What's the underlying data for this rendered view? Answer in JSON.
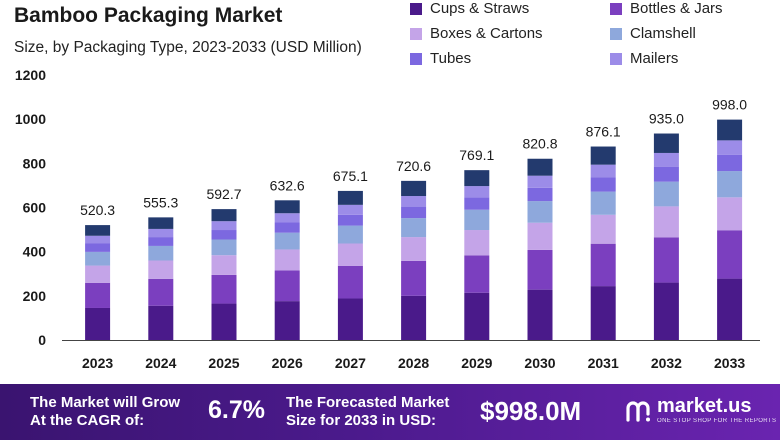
{
  "title": "Bamboo Packaging Market",
  "subtitle": "Size, by Packaging Type, 2023-2033 (USD Million)",
  "footer": {
    "grow_line1": "The Market will Grow",
    "grow_line2": "At the CAGR of:",
    "cagr": "6.7%",
    "forecast_line1": "The Forecasted Market",
    "forecast_line2": "Size for 2033 in USD:",
    "forecast_value": "$998.0M",
    "brand": "market.us",
    "tagline": "ONE STOP SHOP FOR THE REPORTS",
    "icon": "market-us-logo-icon"
  },
  "chart_data": {
    "type": "bar",
    "stacked": true,
    "title": "Bamboo Packaging Market",
    "subtitle": "Size, by Packaging Type, 2023-2033 (USD Million)",
    "xlabel": "",
    "ylabel": "",
    "ylim": [
      0,
      1200
    ],
    "yticks": [
      0,
      200,
      400,
      600,
      800,
      1000,
      1200
    ],
    "grid": false,
    "legend": "top-right",
    "categories": [
      "2023",
      "2024",
      "2025",
      "2026",
      "2027",
      "2028",
      "2029",
      "2030",
      "2031",
      "2032",
      "2033"
    ],
    "totals": [
      520.3,
      555.3,
      592.7,
      632.6,
      675.1,
      720.6,
      769.1,
      820.8,
      876.1,
      935.0,
      998.0
    ],
    "total_labels": [
      "520.3",
      "555.3",
      "592.7",
      "632.6",
      "675.1",
      "720.6",
      "769.1",
      "820.8",
      "876.1",
      "935.0",
      "998.0"
    ],
    "series": [
      {
        "name": "Cups & Straws",
        "color": "#4a1a8a",
        "values": [
          145,
          155,
          165,
          176,
          188,
          200,
          214,
          228,
          244,
          260,
          278
        ]
      },
      {
        "name": "Bottles & Jars",
        "color": "#7b3fbf",
        "values": [
          114,
          122,
          130,
          139,
          148,
          158,
          169,
          180,
          192,
          205,
          219
        ]
      },
      {
        "name": "Boxes & Cartons",
        "color": "#c4a4e8",
        "values": [
          78,
          83,
          89,
          95,
          101,
          108,
          115,
          123,
          131,
          140,
          149
        ]
      },
      {
        "name": "Clamshell",
        "color": "#8ea8dc",
        "values": [
          62,
          66,
          71,
          76,
          81,
          86,
          92,
          98,
          105,
          112,
          119
        ]
      },
      {
        "name": "Tubes",
        "color": "#7c68e0",
        "values": [
          38,
          40,
          43,
          46,
          49,
          52,
          56,
          60,
          64,
          68,
          73
        ]
      },
      {
        "name": "Mailers",
        "color": "#9c8ce8",
        "values": [
          35,
          37,
          40,
          42,
          45,
          48,
          51,
          55,
          58,
          62,
          66
        ]
      },
      {
        "name": "",
        "color": "#233a6e",
        "values": [
          48.3,
          52.3,
          54.7,
          58.6,
          63.1,
          68.6,
          72.1,
          76.8,
          82.1,
          88.0,
          94.0
        ]
      }
    ]
  }
}
